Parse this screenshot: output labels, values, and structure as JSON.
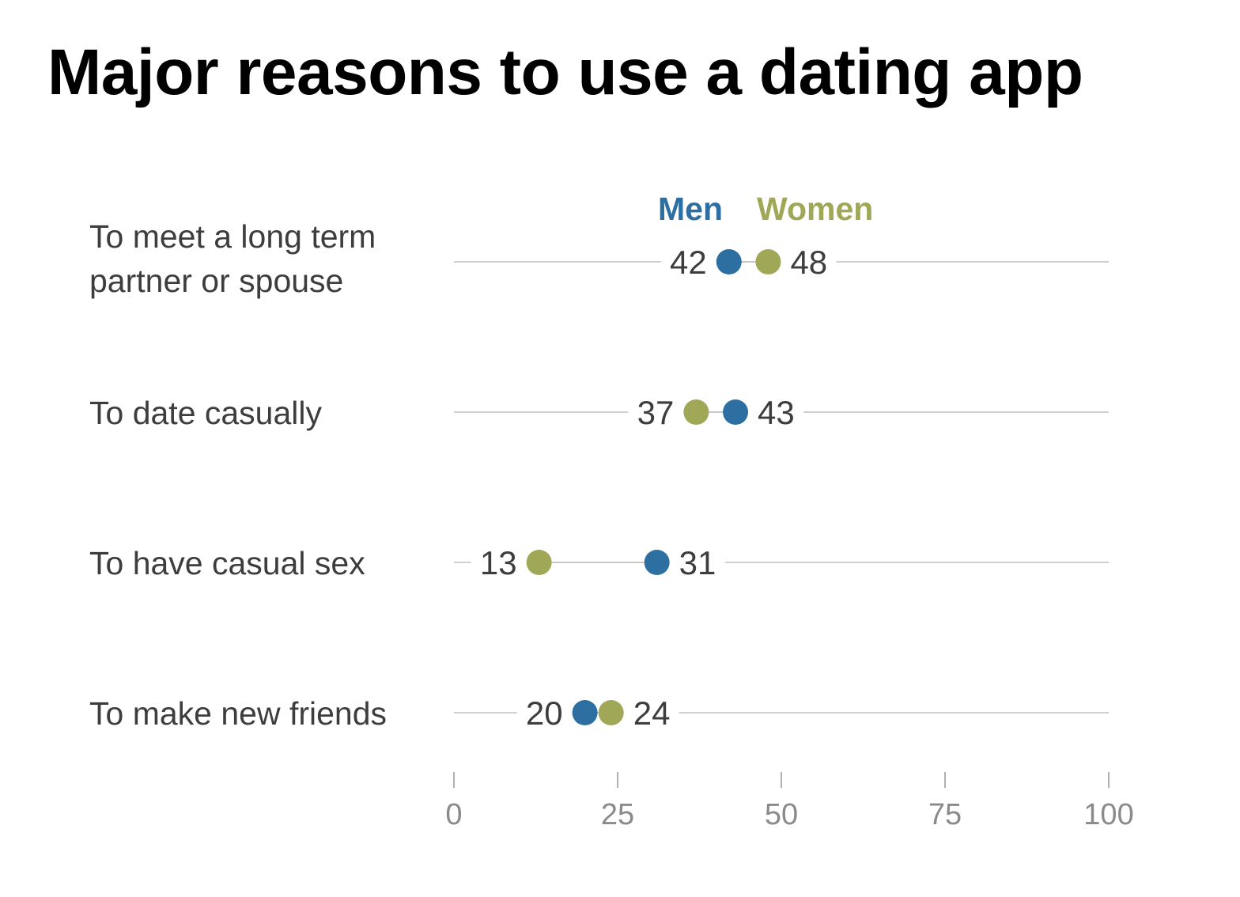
{
  "page": {
    "title": "Major reasons to use a dating app"
  },
  "chart_data": {
    "type": "scatter",
    "subtype": "dot-plot",
    "title": "Major reasons to use a dating app",
    "categories": [
      [
        "To meet a long term",
        "partner or spouse"
      ],
      [
        "To date casually"
      ],
      [
        "To have casual sex"
      ],
      [
        "To make new friends"
      ]
    ],
    "series": [
      {
        "name": "Men",
        "color": "#2c6fa0",
        "values": [
          42,
          43,
          31,
          20
        ]
      },
      {
        "name": "Women",
        "color": "#a0a756",
        "values": [
          48,
          37,
          13,
          24
        ]
      }
    ],
    "xlim": [
      0,
      100
    ],
    "xticks": [
      0,
      25,
      50,
      75,
      100
    ],
    "xlabel": "",
    "ylabel": "",
    "grid": false,
    "legend": "top"
  }
}
